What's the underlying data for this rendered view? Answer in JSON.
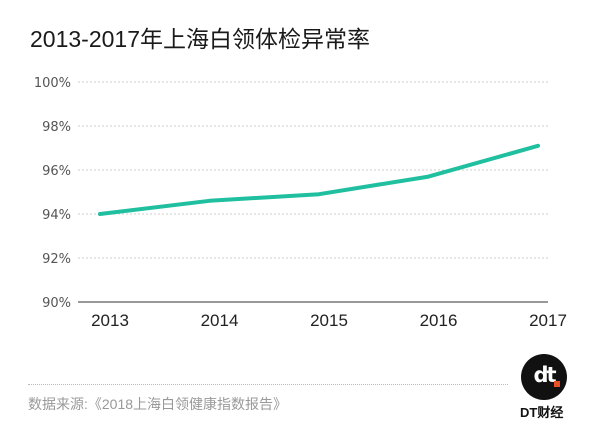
{
  "title": "2013-2017年上海白领体检异常率",
  "source": "数据来源:《2018上海白领健康指数报告》",
  "brand": {
    "logo_text": "dt",
    "name": "DT财经"
  },
  "colors": {
    "line": "#1fbfa0",
    "grid": "#cccccc",
    "axis": "#333333",
    "logo_dot": "#e8502a"
  },
  "chart_data": {
    "type": "line",
    "title": "2013-2017年上海白领体检异常率",
    "xlabel": "",
    "ylabel": "",
    "categories": [
      "2013",
      "2014",
      "2015",
      "2016",
      "2017"
    ],
    "series": [
      {
        "name": "体检异常率",
        "values": [
          94.0,
          94.6,
          94.9,
          95.7,
          97.1
        ]
      }
    ],
    "ylim": [
      90,
      100
    ],
    "yticks": [
      "90%",
      "92%",
      "94%",
      "96%",
      "98%",
      "100%"
    ],
    "grid": true,
    "legend": "none"
  }
}
